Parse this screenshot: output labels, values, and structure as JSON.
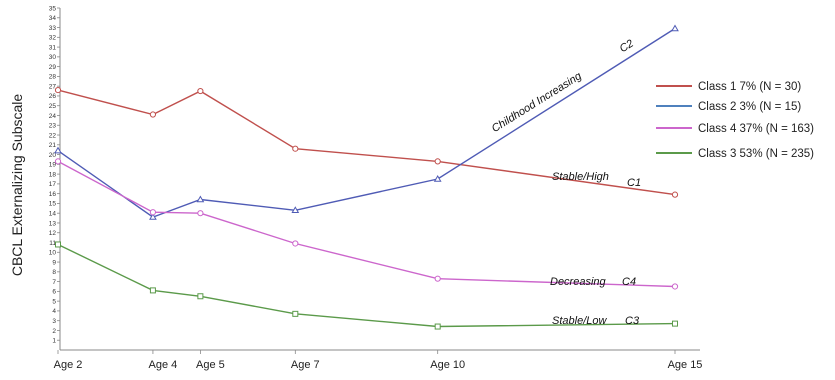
{
  "chart_data": {
    "type": "line",
    "ylabel": "CBCL Externalizing Subscale",
    "xlabel": "",
    "categories": [
      "Age 2",
      "Age 4",
      "Age 5",
      "Age 7",
      "Age 10",
      "Age 15"
    ],
    "x": [
      2,
      4,
      5,
      7,
      10,
      15
    ],
    "ylim": [
      0,
      35
    ],
    "yticks": [
      1,
      2,
      3,
      4,
      5,
      6,
      7,
      8,
      9,
      10,
      11,
      12,
      13,
      14,
      15,
      16,
      17,
      18,
      19,
      20,
      21,
      22,
      23,
      24,
      25,
      26,
      27,
      28,
      29,
      30,
      31,
      32,
      33,
      34,
      35
    ],
    "grid": false,
    "legend_position": "right",
    "series": [
      {
        "name": "Class 1 7% (N = 30)",
        "color": "#c0504d",
        "marker": "circle",
        "values": [
          26.6,
          24.1,
          26.5,
          20.6,
          19.3,
          15.9
        ]
      },
      {
        "name": "Class 2 3% (N = 15)",
        "color": "#4f5bb5",
        "marker": "triangle",
        "values": [
          20.4,
          13.6,
          15.4,
          14.3,
          17.5,
          32.9
        ]
      },
      {
        "name": "Class 4 37% (N = 163)",
        "color": "#cc66cc",
        "marker": "circle",
        "values": [
          19.3,
          14.1,
          14.0,
          10.9,
          7.3,
          6.5
        ]
      },
      {
        "name": "Class 3 53% (N = 235)",
        "color": "#5b9a4a",
        "marker": "square",
        "values": [
          10.8,
          6.1,
          5.5,
          3.7,
          2.4,
          2.7
        ]
      }
    ],
    "annotations": [
      {
        "text": "Childhood Increasing",
        "tag": "C2"
      },
      {
        "text": "Stable/High",
        "tag": "C1"
      },
      {
        "text": "Decreasing",
        "tag": "C4"
      },
      {
        "text": "Stable/Low",
        "tag": "C3"
      }
    ]
  }
}
